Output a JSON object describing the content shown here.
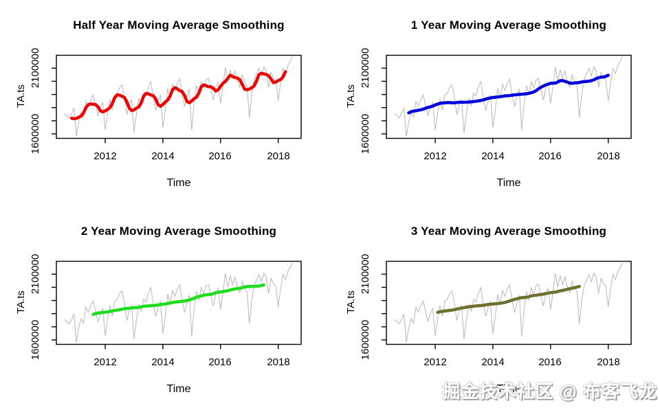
{
  "watermark": {
    "text": "掘金技术社区 @ 布客飞龙"
  },
  "chart_data": {
    "type": "line",
    "layout": "2x2-grid",
    "x": {
      "label": "Time",
      "ticks": [
        2012,
        2014,
        2016,
        2018
      ],
      "range": [
        2010.33,
        2018.81
      ],
      "start": 2010.5833,
      "frequency_per_year": 12
    },
    "y": {
      "label": "TA.ts",
      "ticks": [
        1600000,
        1700000,
        1800000,
        1900000,
        2000000,
        2100000
      ],
      "labeled_ticks": [
        "1600000",
        "2100000"
      ],
      "range": [
        1568000,
        2206000
      ]
    },
    "raw_series": {
      "name": "TA.ts",
      "color": "#bdbdbd",
      "values": [
        1755000,
        1740000,
        1722000,
        1752000,
        1798000,
        1580000,
        1692000,
        1762000,
        1728000,
        1848000,
        1812000,
        1861000,
        1896000,
        1820000,
        1738000,
        1802000,
        1840000,
        1628000,
        1758000,
        1862000,
        1782000,
        1896000,
        1908000,
        1952000,
        1972000,
        1878000,
        1748000,
        1822000,
        1862000,
        1608000,
        1748000,
        1872000,
        1818000,
        1912000,
        1888000,
        1958000,
        1998000,
        1878000,
        1778000,
        1842000,
        1898000,
        1648000,
        1782000,
        1948000,
        1872000,
        1976000,
        1932000,
        1988000,
        2018000,
        1902000,
        1808000,
        1878000,
        1942000,
        1628000,
        1832000,
        1968000,
        1902000,
        1996000,
        1952000,
        2012000,
        2022000,
        1938000,
        1858000,
        1948000,
        1992000,
        1832000,
        1958000,
        2108000,
        2002000,
        2088000,
        2022000,
        2078000,
        2002000,
        1958000,
        2048000,
        1992000,
        1968000,
        1722000,
        1902000,
        2012000,
        2058000,
        2098000,
        2042000,
        2108000,
        2078000,
        1952000,
        2068000,
        2028000,
        2008000,
        1852000,
        1988000,
        2098000,
        2058000,
        2122000,
        2152000,
        2188000
      ]
    },
    "panels": [
      {
        "title": "Half Year Moving Average Smoothing",
        "ma_window_months": 6,
        "ma_color": "#ee0000"
      },
      {
        "title": "1 Year Moving Average Smoothing",
        "ma_window_months": 12,
        "ma_color": "#0000dd"
      },
      {
        "title": "2 Year Moving Average Smoothing",
        "ma_window_months": 24,
        "ma_color": "#1ddd1d"
      },
      {
        "title": "3 Year Moving Average Smoothing",
        "ma_window_months": 36,
        "ma_color": "#6e7030"
      }
    ]
  }
}
